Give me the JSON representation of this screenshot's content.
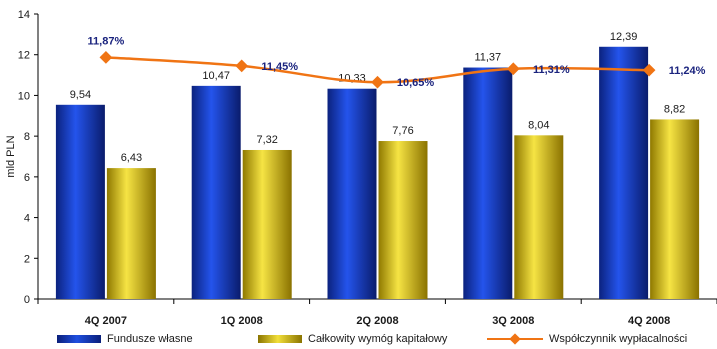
{
  "chart_data": {
    "type": "bar",
    "categories": [
      "4Q 2007",
      "1Q 2008",
      "2Q 2008",
      "3Q 2008",
      "4Q 2008"
    ],
    "ylabel": "mld PLN",
    "ylim": [
      0,
      14
    ],
    "yticks": [
      "0",
      "2",
      "4",
      "6",
      "8",
      "10",
      "12",
      "14"
    ],
    "series": [
      {
        "name": "Fundusze własne",
        "type": "bar",
        "color": "#1a3fc8",
        "values": [
          9.54,
          10.47,
          10.33,
          11.37,
          12.39
        ],
        "labels": [
          "9,54",
          "10,47",
          "10,33",
          "11,37",
          "12,39"
        ]
      },
      {
        "name": "Całkowity wymóg kapitałowy",
        "type": "bar",
        "color": "#e6cf1f",
        "values": [
          6.43,
          7.32,
          7.76,
          8.04,
          8.82
        ],
        "labels": [
          "6,43",
          "7,32",
          "7,76",
          "8,04",
          "8,82"
        ]
      },
      {
        "name": "Współczynnik wypłacalności",
        "type": "line",
        "color": "#f07414",
        "values": [
          11.87,
          11.45,
          10.65,
          11.31,
          11.24
        ],
        "labels": [
          "11,87%",
          "11,45%",
          "10,65%",
          "11,31%",
          "11,24%"
        ]
      }
    ],
    "grid": false,
    "legend_position": "bottom"
  }
}
